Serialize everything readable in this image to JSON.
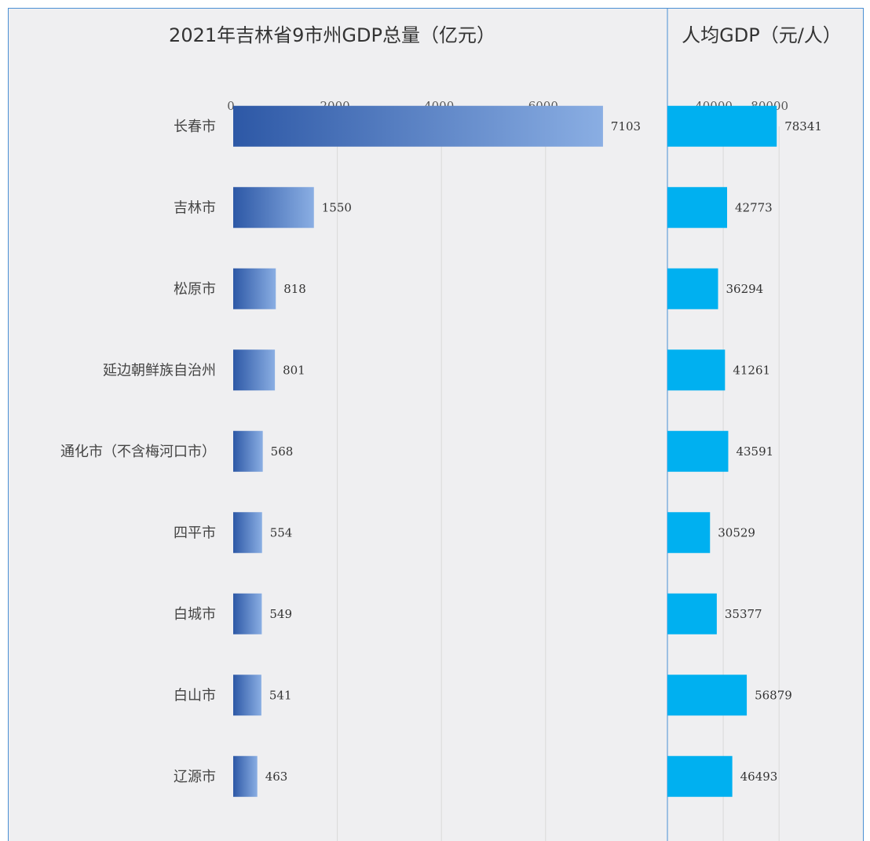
{
  "chart_data": [
    {
      "type": "bar",
      "orientation": "horizontal",
      "title": "2021年吉林省9市州GDP总量（亿元）",
      "categories": [
        "长春市",
        "吉林市",
        "松原市",
        "延边朝鲜族自治州",
        "通化市（不含梅河口市）",
        "四平市",
        "白城市",
        "白山市",
        "辽源市"
      ],
      "values": [
        7103,
        1550,
        818,
        801,
        568,
        554,
        549,
        541,
        463
      ],
      "value_labels": [
        "7103",
        "1550",
        "818",
        "801",
        "568",
        "554",
        "549",
        "541",
        "463"
      ],
      "ticks": [
        0,
        2000,
        4000,
        6000
      ],
      "tick_labels": [
        "0",
        "2000",
        "4000",
        "6000"
      ],
      "xlim": [
        0,
        8000
      ],
      "grid": true,
      "bar_color_start": "#2d58a6",
      "bar_color_end": "#8aaee3"
    },
    {
      "type": "bar",
      "orientation": "horizontal",
      "title": "人均GDP（元/人）",
      "categories": [
        "长春市",
        "吉林市",
        "松原市",
        "延边朝鲜族自治州",
        "通化市（不含梅河口市）",
        "四平市",
        "白城市",
        "白山市",
        "辽源市"
      ],
      "values": [
        78341,
        42773,
        36294,
        41261,
        43591,
        30529,
        35377,
        56879,
        46493
      ],
      "value_labels": [
        "78341",
        "42773",
        "36294",
        "41261",
        "43591",
        "30529",
        "35377",
        "56879",
        "46493"
      ],
      "ticks": [
        40000,
        80000
      ],
      "tick_labels": [
        "40000",
        "80000"
      ],
      "xlim": [
        0,
        100000
      ],
      "grid": true,
      "bar_color": "#00b0f0"
    }
  ],
  "colors": {
    "frame": "#4a8fd4",
    "background": "#efeff1",
    "grid": "#d9d9d9"
  }
}
